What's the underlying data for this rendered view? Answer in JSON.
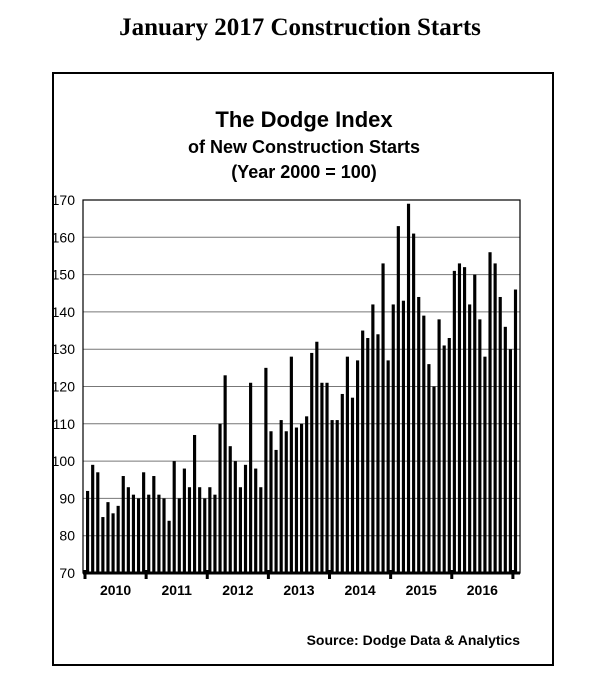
{
  "page_title": "January 2017 Construction Starts",
  "chart_data": {
    "type": "bar",
    "title": "The Dodge Index",
    "subtitle": "of New Construction Starts",
    "subtitle2": "(Year 2000 = 100)",
    "source": "Source:  Dodge Data & Analytics",
    "ylim": [
      70,
      170
    ],
    "yticks": [
      70,
      80,
      90,
      100,
      110,
      120,
      130,
      140,
      150,
      160,
      170
    ],
    "grid": true,
    "year_labels": [
      "2010",
      "2011",
      "2012",
      "2013",
      "2014",
      "2015",
      "2016"
    ],
    "x_start": "Jan 2010",
    "x_end": "Jan 2017",
    "values": [
      92,
      99,
      97,
      85,
      89,
      86,
      88,
      96,
      93,
      91,
      90,
      97,
      91,
      96,
      91,
      90,
      84,
      100,
      90,
      98,
      93,
      107,
      93,
      90,
      93,
      91,
      110,
      123,
      104,
      100,
      93,
      99,
      121,
      98,
      93,
      125,
      108,
      103,
      111,
      108,
      128,
      109,
      110,
      112,
      129,
      132,
      121,
      121,
      111,
      111,
      118,
      128,
      117,
      127,
      135,
      133,
      142,
      134,
      153,
      127,
      142,
      163,
      143,
      169,
      161,
      144,
      139,
      126,
      120,
      138,
      131,
      133,
      151,
      153,
      152,
      142,
      150,
      138,
      128,
      156,
      153,
      144,
      136,
      130,
      146
    ]
  }
}
